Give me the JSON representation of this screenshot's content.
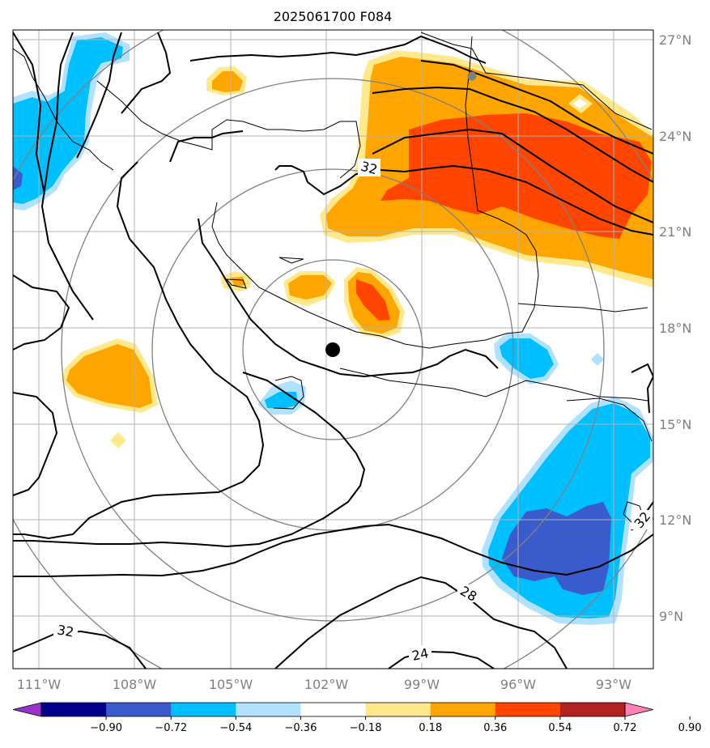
{
  "title": "2025061700 F084",
  "map": {
    "lon_ticks": [
      "111°W",
      "108°W",
      "105°W",
      "102°W",
      "99°W",
      "96°W",
      "93°W"
    ],
    "lat_ticks": [
      "27°N",
      "24°N",
      "21°N",
      "18°N",
      "15°N",
      "12°N",
      "9°N"
    ],
    "contour_labels": [
      "32",
      "32",
      "32",
      "28",
      "24"
    ],
    "center_marker_color": "#000000",
    "station_marker_color": "#808080"
  },
  "colorbar": {
    "ticks": [
      "−0.90",
      "−0.72",
      "−0.54",
      "−0.36",
      "−0.18",
      "0.18",
      "0.36",
      "0.54",
      "0.72",
      "0.90"
    ],
    "colors": [
      "#9932cc",
      "#00008b",
      "#3a5bcc",
      "#00bfff",
      "#b0e2ff",
      "#ffffff",
      "#ffe98c",
      "#ffa500",
      "#ff4500",
      "#b22222",
      "#ff80b4"
    ]
  }
}
